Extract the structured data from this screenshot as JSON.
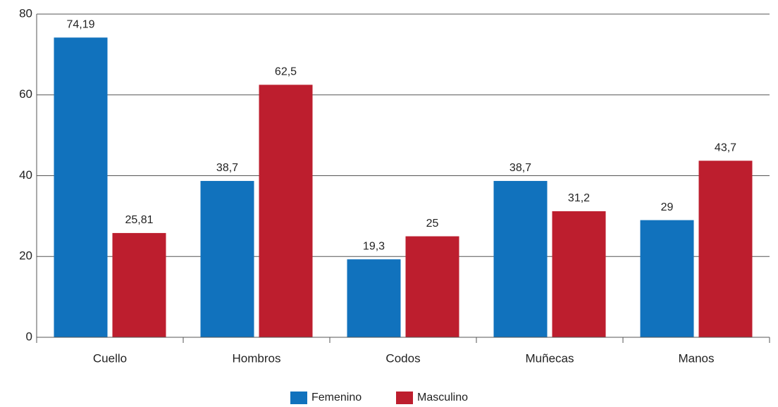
{
  "chart_data": {
    "type": "bar",
    "categories": [
      "Cuello",
      "Hombros",
      "Codos",
      "Muñecas",
      "Manos"
    ],
    "series": [
      {
        "name": "Femenino",
        "color": "#1172bd",
        "values": [
          74.19,
          38.7,
          19.3,
          38.7,
          29
        ],
        "value_labels": [
          "74,19",
          "38,7",
          "19,3",
          "38,7",
          "29"
        ]
      },
      {
        "name": "Masculino",
        "color": "#bd1e2e",
        "values": [
          25.81,
          62.5,
          25,
          31.2,
          43.7
        ],
        "value_labels": [
          "25,81",
          "62,5",
          "25",
          "31,2",
          "43,7"
        ]
      }
    ],
    "ylim": [
      0,
      80
    ],
    "yticks": [
      0,
      20,
      40,
      60,
      80
    ],
    "grid": true,
    "legend": "bottom"
  }
}
